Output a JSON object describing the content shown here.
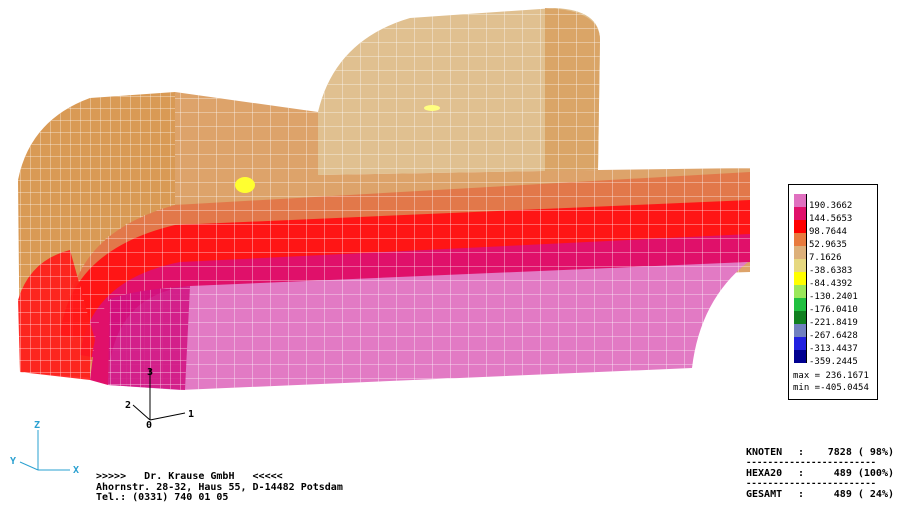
{
  "legend": {
    "entries": [
      {
        "label": "190.3662",
        "color": "#e070c0"
      },
      {
        "label": "144.5653",
        "color": "#e0106a"
      },
      {
        "label": "98.7644",
        "color": "#ff0000"
      },
      {
        "label": "52.9635",
        "color": "#e87a3e"
      },
      {
        "label": "7.1626",
        "color": "#ddb07a"
      },
      {
        "label": "-38.6383",
        "color": "#e6d880"
      },
      {
        "label": "-84.4392",
        "color": "#ffff00"
      },
      {
        "label": "-130.2401",
        "color": "#9ae85a"
      },
      {
        "label": "-176.0410",
        "color": "#20c040"
      },
      {
        "label": "-221.8419",
        "color": "#108020"
      },
      {
        "label": "-267.6428",
        "color": "#7080c0"
      },
      {
        "label": "-313.4437",
        "color": "#2020e0"
      },
      {
        "label": "-359.2445",
        "color": "#000090"
      }
    ],
    "max_label": "max = 236.1671",
    "min_label": "min =-405.0454"
  },
  "local_axes": {
    "axis1": "1",
    "axis2": "2",
    "axis3": "3",
    "origin": "0"
  },
  "global_axes": {
    "z": "Z",
    "y": "Y",
    "x": "X"
  },
  "company": {
    "line1": ">>>>>   Dr. Krause GmbH   <<<<<",
    "line2": "Ahornstr. 28-32, Haus 55, D-14482 Potsdam",
    "line3": "Tel.: (0331) 740 01 05"
  },
  "stats": {
    "rows": [
      {
        "label": "KNOTEN",
        "value": "7828 ( 98%)"
      },
      {
        "label": "HEXA20",
        "value": "489 (100%)"
      },
      {
        "label": "GESAMT",
        "value": "489 ( 24%)"
      }
    ],
    "separator": "------------------------"
  },
  "colors": {
    "pink": "#e070c0",
    "magenta": "#e0106a",
    "red": "#ff0000",
    "orange": "#e08a45",
    "tan": "#d8a868",
    "beige": "#e0c090",
    "yellow": "#ffff00",
    "mesh_line": "#ffffff",
    "axis_blue": "#2aa0d0"
  }
}
